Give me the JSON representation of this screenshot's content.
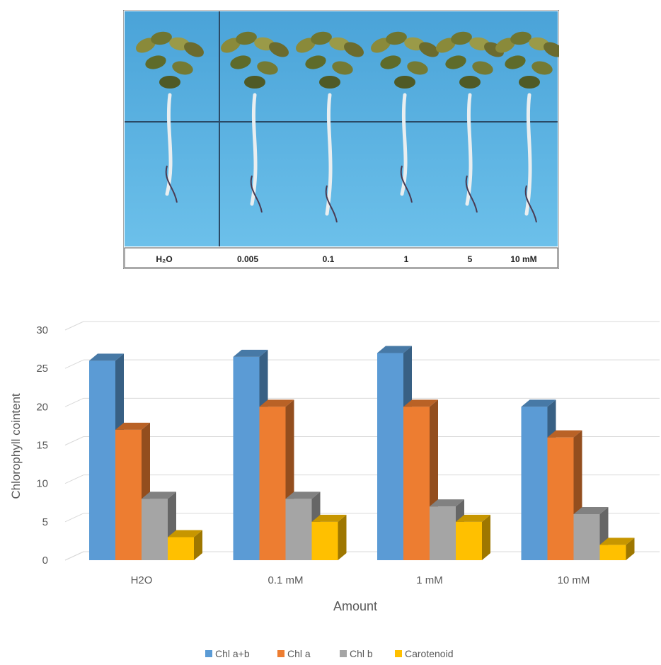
{
  "photo": {
    "labels": [
      "H₂O",
      "0.005",
      "0.1",
      "1",
      "5",
      "10 mM"
    ]
  },
  "chart_data": {
    "type": "bar",
    "categories": [
      "H2O",
      "0.1 mM",
      "1 mM",
      "10 mM"
    ],
    "series": [
      {
        "name": "Chl a+b",
        "values": [
          26,
          26.5,
          27,
          20
        ],
        "color": "#5b9bd5"
      },
      {
        "name": "Chl a",
        "values": [
          17,
          20,
          20,
          16
        ],
        "color": "#ed7d31"
      },
      {
        "name": "Chl b",
        "values": [
          8,
          8,
          7,
          6
        ],
        "color": "#a5a5a5"
      },
      {
        "name": "Carotenoid",
        "values": [
          3,
          5,
          5,
          2
        ],
        "color": "#ffc000"
      }
    ],
    "xlabel": "Amount",
    "ylabel": "Chlorophyll cointent",
    "ylim": [
      0,
      30
    ],
    "yticks": [
      0,
      5,
      10,
      15,
      20,
      25,
      30
    ],
    "grid": true,
    "legend_position": "bottom",
    "style": "3d-clustered-column"
  }
}
